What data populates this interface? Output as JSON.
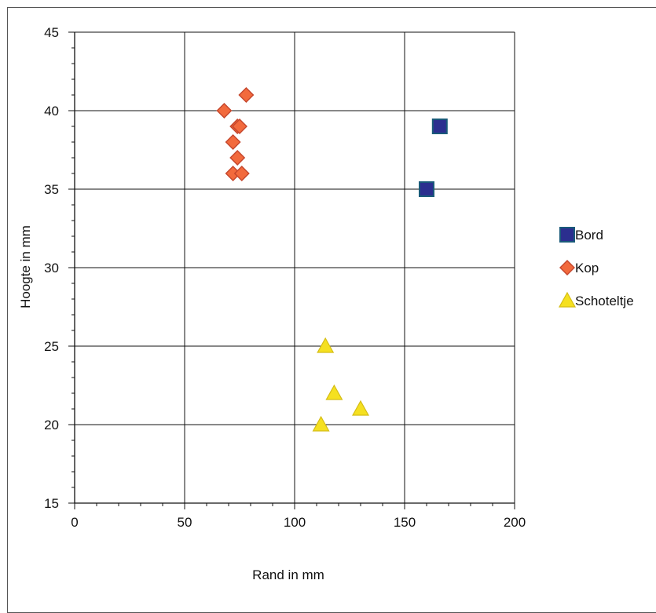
{
  "chart_data": {
    "type": "scatter",
    "title": "",
    "xlabel": "Rand in mm",
    "ylabel": "Hoogte in mm",
    "xlim": [
      0,
      200
    ],
    "ylim": [
      15,
      45
    ],
    "x_ticks": [
      0,
      50,
      100,
      150,
      200
    ],
    "y_ticks": [
      15,
      20,
      25,
      30,
      35,
      40,
      45
    ],
    "grid": true,
    "legend_position": "right",
    "series": [
      {
        "name": "Bord",
        "marker": "square",
        "color": "#2b2f8f",
        "points": [
          {
            "x": 160,
            "y": 35
          },
          {
            "x": 166,
            "y": 39
          }
        ]
      },
      {
        "name": "Kop",
        "marker": "diamond",
        "color": "#f26a3d",
        "points": [
          {
            "x": 68,
            "y": 40
          },
          {
            "x": 78,
            "y": 41
          },
          {
            "x": 74,
            "y": 39
          },
          {
            "x": 75,
            "y": 39
          },
          {
            "x": 72,
            "y": 38
          },
          {
            "x": 74,
            "y": 37
          },
          {
            "x": 72,
            "y": 36
          },
          {
            "x": 76,
            "y": 36
          }
        ]
      },
      {
        "name": "Schoteltje",
        "marker": "triangle",
        "color": "#f5e020",
        "points": [
          {
            "x": 114,
            "y": 25
          },
          {
            "x": 118,
            "y": 22
          },
          {
            "x": 130,
            "y": 21
          },
          {
            "x": 112,
            "y": 20
          }
        ]
      }
    ]
  }
}
